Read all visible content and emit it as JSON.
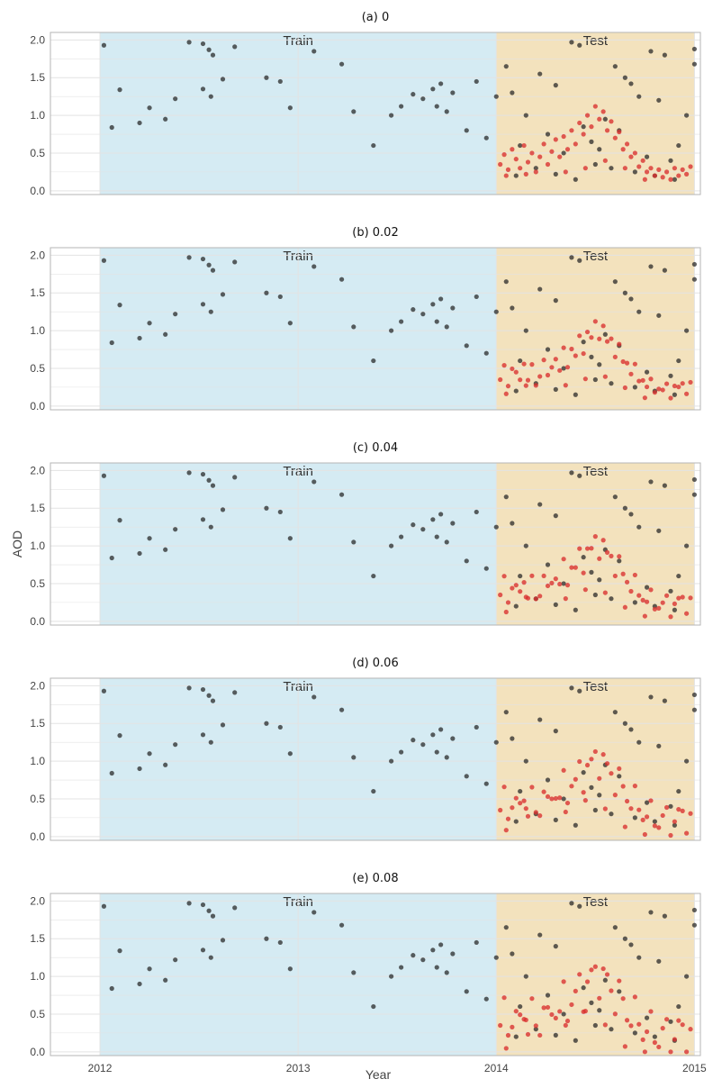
{
  "figure": {
    "ylabel": "AOD",
    "xlabel": "Year"
  },
  "colors": {
    "train_bg": "#d5ebf3",
    "test_bg": "#f3e2bd",
    "observed_point": "#222222",
    "predicted_point": "#d8302e",
    "grid": "#e3e3e3",
    "frame": "#b5b5b5"
  },
  "chart_data": [
    {
      "type": "scatter",
      "title": "(a) 0",
      "regions": [
        {
          "label": "Train",
          "from": 2012.0,
          "to": 2014.0
        },
        {
          "label": "Test",
          "from": 2014.0,
          "to": 2015.0
        }
      ],
      "xlim": [
        2011.75,
        2015.03
      ],
      "ylim": [
        -0.05,
        2.1
      ],
      "xticks": [
        2012,
        2013,
        2014,
        2015
      ],
      "xtick_labels": [
        "2012",
        "2013",
        "2014",
        "2015"
      ],
      "yticks": [
        0,
        0.5,
        1,
        1.5,
        2
      ],
      "ytick_labels": [
        "0.0",
        "0.5",
        "1.0",
        "1.5",
        "2.0"
      ],
      "show_x_tick_labels": false,
      "series": [
        {
          "key": "observed"
        },
        {
          "key": "predicted",
          "perturbation": 0
        }
      ]
    },
    {
      "type": "scatter",
      "title": "(b) 0.02",
      "regions": [
        {
          "label": "Train",
          "from": 2012.0,
          "to": 2014.0
        },
        {
          "label": "Test",
          "from": 2014.0,
          "to": 2015.0
        }
      ],
      "xlim": [
        2011.75,
        2015.03
      ],
      "ylim": [
        -0.05,
        2.1
      ],
      "xticks": [
        2012,
        2013,
        2014,
        2015
      ],
      "xtick_labels": [
        "2012",
        "2013",
        "2014",
        "2015"
      ],
      "yticks": [
        0,
        0.5,
        1,
        1.5,
        2
      ],
      "ytick_labels": [
        "0.0",
        "0.5",
        "1.0",
        "1.5",
        "2.0"
      ],
      "show_x_tick_labels": false,
      "series": [
        {
          "key": "observed"
        },
        {
          "key": "predicted",
          "perturbation": 0.02
        }
      ]
    },
    {
      "type": "scatter",
      "title": "(c) 0.04",
      "regions": [
        {
          "label": "Train",
          "from": 2012.0,
          "to": 2014.0
        },
        {
          "label": "Test",
          "from": 2014.0,
          "to": 2015.0
        }
      ],
      "xlim": [
        2011.75,
        2015.03
      ],
      "ylim": [
        -0.05,
        2.1
      ],
      "xticks": [
        2012,
        2013,
        2014,
        2015
      ],
      "xtick_labels": [
        "2012",
        "2013",
        "2014",
        "2015"
      ],
      "yticks": [
        0,
        0.5,
        1,
        1.5,
        2
      ],
      "ytick_labels": [
        "0.0",
        "0.5",
        "1.0",
        "1.5",
        "2.0"
      ],
      "show_x_tick_labels": false,
      "series": [
        {
          "key": "observed"
        },
        {
          "key": "predicted",
          "perturbation": 0.04
        }
      ]
    },
    {
      "type": "scatter",
      "title": "(d) 0.06",
      "regions": [
        {
          "label": "Train",
          "from": 2012.0,
          "to": 2014.0
        },
        {
          "label": "Test",
          "from": 2014.0,
          "to": 2015.0
        }
      ],
      "xlim": [
        2011.75,
        2015.03
      ],
      "ylim": [
        -0.05,
        2.1
      ],
      "xticks": [
        2012,
        2013,
        2014,
        2015
      ],
      "xtick_labels": [
        "2012",
        "2013",
        "2014",
        "2015"
      ],
      "yticks": [
        0,
        0.5,
        1,
        1.5,
        2
      ],
      "ytick_labels": [
        "0.0",
        "0.5",
        "1.0",
        "1.5",
        "2.0"
      ],
      "show_x_tick_labels": false,
      "series": [
        {
          "key": "observed"
        },
        {
          "key": "predicted",
          "perturbation": 0.06
        }
      ]
    },
    {
      "type": "scatter",
      "title": "(e) 0.08",
      "regions": [
        {
          "label": "Train",
          "from": 2012.0,
          "to": 2014.0
        },
        {
          "label": "Test",
          "from": 2014.0,
          "to": 2015.0
        }
      ],
      "xlim": [
        2011.75,
        2015.03
      ],
      "ylim": [
        -0.05,
        2.1
      ],
      "xticks": [
        2012,
        2013,
        2014,
        2015
      ],
      "xtick_labels": [
        "2012",
        "2013",
        "2014",
        "2015"
      ],
      "yticks": [
        0,
        0.5,
        1,
        1.5,
        2
      ],
      "ytick_labels": [
        "0.0",
        "0.5",
        "1.0",
        "1.5",
        "2.0"
      ],
      "show_x_tick_labels": true,
      "series": [
        {
          "key": "observed"
        },
        {
          "key": "predicted",
          "perturbation": 0.08
        }
      ]
    }
  ],
  "series_points": {
    "observed": [
      [
        2012.02,
        1.93
      ],
      [
        2012.06,
        0.84
      ],
      [
        2012.1,
        1.34
      ],
      [
        2012.2,
        0.9
      ],
      [
        2012.25,
        1.1
      ],
      [
        2012.33,
        0.95
      ],
      [
        2012.38,
        1.22
      ],
      [
        2012.45,
        1.97
      ],
      [
        2012.52,
        1.95
      ],
      [
        2012.55,
        1.87
      ],
      [
        2012.57,
        1.8
      ],
      [
        2012.52,
        1.35
      ],
      [
        2012.56,
        1.25
      ],
      [
        2012.62,
        1.48
      ],
      [
        2012.68,
        1.91
      ],
      [
        2012.84,
        1.5
      ],
      [
        2012.91,
        1.45
      ],
      [
        2012.96,
        1.1
      ],
      [
        2013.08,
        1.85
      ],
      [
        2013.22,
        1.68
      ],
      [
        2013.28,
        1.05
      ],
      [
        2013.38,
        0.6
      ],
      [
        2013.47,
        1.0
      ],
      [
        2013.52,
        1.12
      ],
      [
        2013.58,
        1.28
      ],
      [
        2013.63,
        1.22
      ],
      [
        2013.68,
        1.35
      ],
      [
        2013.72,
        1.42
      ],
      [
        2013.7,
        1.12
      ],
      [
        2013.75,
        1.05
      ],
      [
        2013.78,
        1.3
      ],
      [
        2013.85,
        0.8
      ],
      [
        2013.9,
        1.45
      ],
      [
        2013.95,
        0.7
      ],
      [
        2014.0,
        1.25
      ],
      [
        2014.05,
        1.65
      ],
      [
        2014.08,
        1.3
      ],
      [
        2014.15,
        1.0
      ],
      [
        2014.22,
        1.55
      ],
      [
        2014.3,
        1.4
      ],
      [
        2014.38,
        1.97
      ],
      [
        2014.42,
        1.93
      ],
      [
        2014.48,
        0.65
      ],
      [
        2014.55,
        0.95
      ],
      [
        2014.6,
        1.65
      ],
      [
        2014.65,
        1.5
      ],
      [
        2014.68,
        1.42
      ],
      [
        2014.72,
        1.25
      ],
      [
        2014.78,
        1.85
      ],
      [
        2014.82,
        1.2
      ],
      [
        2014.85,
        1.8
      ],
      [
        2014.88,
        0.4
      ],
      [
        2014.92,
        0.6
      ],
      [
        2014.96,
        1.0
      ],
      [
        2015.0,
        1.88
      ],
      [
        2015.0,
        1.68
      ],
      [
        2014.1,
        0.2
      ],
      [
        2014.2,
        0.3
      ],
      [
        2014.3,
        0.22
      ],
      [
        2014.4,
        0.15
      ],
      [
        2014.5,
        0.35
      ],
      [
        2014.58,
        0.3
      ],
      [
        2014.7,
        0.25
      ],
      [
        2014.8,
        0.2
      ],
      [
        2014.9,
        0.15
      ],
      [
        2014.12,
        0.6
      ],
      [
        2014.26,
        0.75
      ],
      [
        2014.34,
        0.5
      ],
      [
        2014.44,
        0.85
      ],
      [
        2014.52,
        0.55
      ],
      [
        2014.62,
        0.8
      ],
      [
        2014.76,
        0.45
      ]
    ],
    "predicted": [
      [
        2014.02,
        0.35
      ],
      [
        2014.04,
        0.48
      ],
      [
        2014.06,
        0.28
      ],
      [
        2014.08,
        0.55
      ],
      [
        2014.1,
        0.42
      ],
      [
        2014.12,
        0.3
      ],
      [
        2014.14,
        0.6
      ],
      [
        2014.16,
        0.38
      ],
      [
        2014.18,
        0.5
      ],
      [
        2014.2,
        0.25
      ],
      [
        2014.22,
        0.45
      ],
      [
        2014.24,
        0.62
      ],
      [
        2014.26,
        0.35
      ],
      [
        2014.28,
        0.52
      ],
      [
        2014.3,
        0.68
      ],
      [
        2014.32,
        0.45
      ],
      [
        2014.34,
        0.72
      ],
      [
        2014.36,
        0.55
      ],
      [
        2014.38,
        0.8
      ],
      [
        2014.4,
        0.62
      ],
      [
        2014.42,
        0.9
      ],
      [
        2014.44,
        0.75
      ],
      [
        2014.46,
        1.0
      ],
      [
        2014.48,
        0.85
      ],
      [
        2014.5,
        1.12
      ],
      [
        2014.52,
        0.95
      ],
      [
        2014.54,
        1.05
      ],
      [
        2014.56,
        0.8
      ],
      [
        2014.58,
        0.92
      ],
      [
        2014.6,
        0.7
      ],
      [
        2014.62,
        0.78
      ],
      [
        2014.64,
        0.55
      ],
      [
        2014.66,
        0.62
      ],
      [
        2014.68,
        0.45
      ],
      [
        2014.7,
        0.5
      ],
      [
        2014.72,
        0.32
      ],
      [
        2014.74,
        0.4
      ],
      [
        2014.76,
        0.25
      ],
      [
        2014.78,
        0.3
      ],
      [
        2014.8,
        0.2
      ],
      [
        2014.82,
        0.28
      ],
      [
        2014.84,
        0.18
      ],
      [
        2014.86,
        0.25
      ],
      [
        2014.88,
        0.15
      ],
      [
        2014.9,
        0.3
      ],
      [
        2014.92,
        0.2
      ],
      [
        2014.94,
        0.28
      ],
      [
        2014.96,
        0.22
      ],
      [
        2014.98,
        0.32
      ],
      [
        2014.45,
        0.3
      ],
      [
        2014.55,
        0.4
      ],
      [
        2014.65,
        0.3
      ],
      [
        2014.35,
        0.25
      ],
      [
        2014.15,
        0.22
      ],
      [
        2014.05,
        0.2
      ],
      [
        2014.75,
        0.15
      ]
    ]
  }
}
